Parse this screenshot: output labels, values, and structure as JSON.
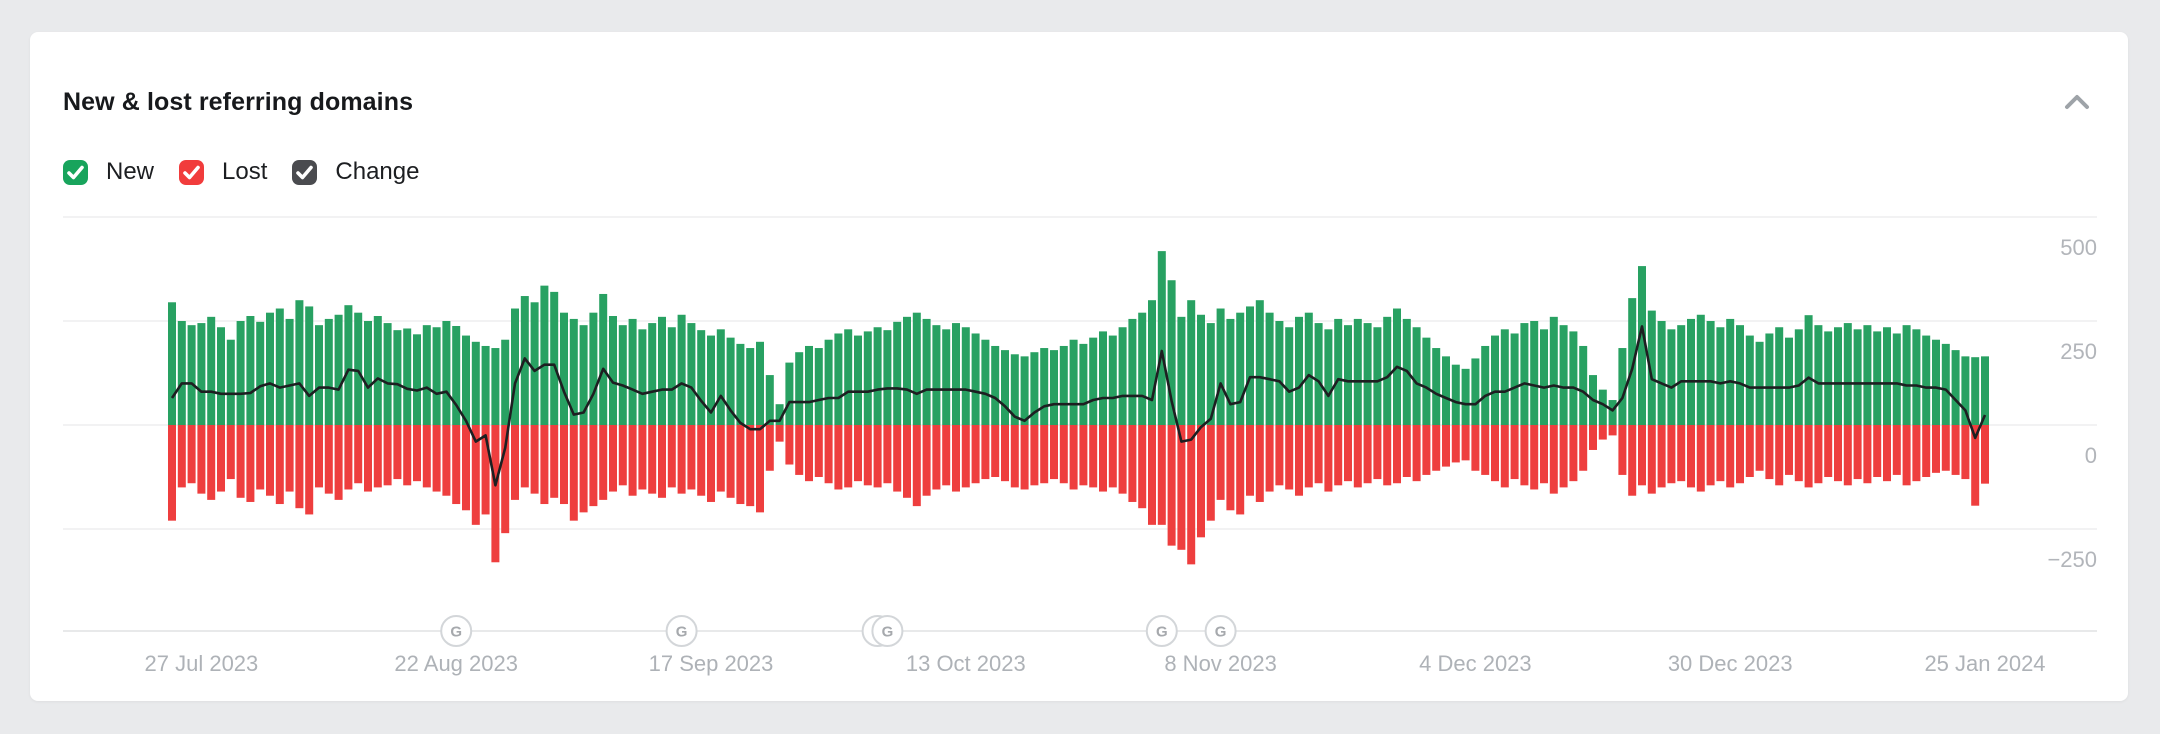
{
  "card": {
    "title": "New & lost referring domains"
  },
  "legend": [
    {
      "id": "new",
      "label": "New",
      "color": "#18a45c",
      "checked": true
    },
    {
      "id": "lost",
      "label": "Lost",
      "color": "#f13c3c",
      "checked": true
    },
    {
      "id": "change",
      "label": "Change",
      "color": "#4a4b4f",
      "checked": true
    }
  ],
  "chart_data": {
    "type": "bar",
    "subtype": "combo-bar-line",
    "title": "New & lost referring domains",
    "xlabel": "",
    "ylabel": "",
    "start_date": "24 Jul 2023",
    "end_date": "25 Jan 2024",
    "x_tick_labels": [
      "27 Jul 2023",
      "22 Aug 2023",
      "17 Sep 2023",
      "13 Oct 2023",
      "8 Nov 2023",
      "4 Dec 2023",
      "30 Dec 2023",
      "25 Jan 2024"
    ],
    "x_tick_day_index": [
      3,
      29,
      55,
      81,
      107,
      133,
      159,
      185
    ],
    "y_tick_labels": [
      "500",
      "250",
      "0",
      "−250"
    ],
    "y_tick_values": [
      500,
      250,
      0,
      -250
    ],
    "y_axis_side": "right",
    "ylim": [
      -495,
      500
    ],
    "grid": true,
    "legend_position": "top-left",
    "google_update_markers": {
      "glyph": "G",
      "day_indices": [
        29,
        52,
        72,
        73,
        101,
        107
      ]
    },
    "series": [
      {
        "name": "New",
        "type": "bar",
        "color": "#28a162",
        "values": [
          295,
          250,
          240,
          245,
          260,
          235,
          205,
          250,
          262,
          248,
          270,
          280,
          255,
          300,
          285,
          240,
          255,
          265,
          288,
          270,
          250,
          262,
          245,
          228,
          232,
          218,
          240,
          235,
          250,
          238,
          215,
          200,
          190,
          185,
          205,
          280,
          310,
          295,
          335,
          320,
          270,
          255,
          240,
          270,
          315,
          262,
          240,
          255,
          230,
          245,
          260,
          235,
          265,
          245,
          228,
          215,
          230,
          210,
          195,
          185,
          200,
          120,
          50,
          150,
          175,
          190,
          185,
          205,
          220,
          230,
          215,
          225,
          235,
          228,
          248,
          260,
          270,
          255,
          240,
          230,
          245,
          235,
          220,
          205,
          190,
          180,
          170,
          165,
          175,
          185,
          180,
          190,
          205,
          195,
          210,
          225,
          215,
          235,
          255,
          270,
          300,
          418,
          348,
          260,
          300,
          265,
          245,
          280,
          255,
          270,
          285,
          300,
          270,
          250,
          235,
          260,
          270,
          245,
          230,
          255,
          240,
          255,
          245,
          235,
          260,
          280,
          255,
          235,
          210,
          185,
          165,
          145,
          135,
          160,
          190,
          215,
          230,
          220,
          245,
          250,
          230,
          260,
          240,
          225,
          190,
          120,
          85,
          60,
          185,
          305,
          382,
          275,
          250,
          230,
          240,
          255,
          265,
          250,
          235,
          255,
          240,
          215,
          200,
          220,
          235,
          210,
          230,
          264,
          240,
          225,
          235,
          245,
          230,
          240,
          225,
          235,
          220,
          240,
          230,
          215,
          205,
          195,
          180,
          165,
          163,
          165
        ]
      },
      {
        "name": "Lost",
        "type": "bar",
        "color": "#ee3e3e",
        "values": [
          -230,
          -150,
          -140,
          -165,
          -180,
          -160,
          -130,
          -175,
          -185,
          -155,
          -170,
          -190,
          -160,
          -200,
          -215,
          -150,
          -165,
          -180,
          -155,
          -140,
          -160,
          -150,
          -145,
          -130,
          -145,
          -135,
          -150,
          -160,
          -170,
          -190,
          -205,
          -240,
          -215,
          -330,
          -260,
          -180,
          -150,
          -165,
          -190,
          -175,
          -190,
          -230,
          -210,
          -195,
          -180,
          -160,
          -145,
          -170,
          -155,
          -165,
          -175,
          -150,
          -165,
          -155,
          -170,
          -185,
          -160,
          -175,
          -190,
          -195,
          -210,
          -110,
          -40,
          -95,
          -120,
          -135,
          -125,
          -140,
          -155,
          -150,
          -135,
          -145,
          -150,
          -140,
          -160,
          -175,
          -195,
          -170,
          -155,
          -145,
          -160,
          -150,
          -140,
          -130,
          -125,
          -135,
          -150,
          -155,
          -145,
          -140,
          -130,
          -140,
          -155,
          -145,
          -150,
          -160,
          -150,
          -165,
          -185,
          -200,
          -240,
          -240,
          -290,
          -300,
          -335,
          -270,
          -230,
          -180,
          -205,
          -215,
          -170,
          -185,
          -160,
          -145,
          -155,
          -170,
          -150,
          -140,
          -160,
          -145,
          -135,
          -150,
          -140,
          -130,
          -145,
          -140,
          -125,
          -135,
          -120,
          -110,
          -100,
          -90,
          -85,
          -110,
          -120,
          -135,
          -150,
          -130,
          -145,
          -155,
          -140,
          -165,
          -150,
          -135,
          -110,
          -60,
          -35,
          -25,
          -120,
          -170,
          -145,
          -165,
          -150,
          -140,
          -135,
          -150,
          -160,
          -145,
          -135,
          -150,
          -140,
          -125,
          -110,
          -130,
          -145,
          -120,
          -135,
          -150,
          -140,
          -125,
          -135,
          -145,
          -130,
          -140,
          -125,
          -135,
          -120,
          -145,
          -135,
          -125,
          -115,
          -110,
          -120,
          -130,
          -194,
          -141
        ]
      },
      {
        "name": "Change",
        "type": "line",
        "color": "#1d1f21",
        "derived": "New + Lost (net daily change)"
      }
    ]
  }
}
